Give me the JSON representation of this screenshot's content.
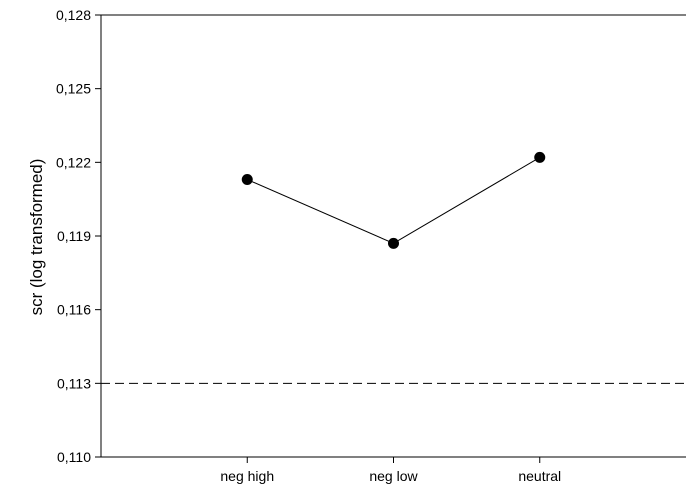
{
  "chart_data": {
    "type": "line",
    "title": "",
    "xlabel": "",
    "ylabel": "scr (log transformed)",
    "categories": [
      "neg high",
      "neg low",
      "neutral"
    ],
    "series": [
      {
        "values": [
          0.1213,
          0.1187,
          0.1222
        ]
      }
    ],
    "ylim": [
      0.11,
      0.128
    ],
    "yticks": [
      0.11,
      0.113,
      0.116,
      0.119,
      0.122,
      0.125,
      0.128
    ],
    "ytick_labels": [
      "0,110",
      "0,113",
      "0,116",
      "0,119",
      "0,122",
      "0,125",
      "0,128"
    ],
    "reference_line": {
      "y": 0.113,
      "style": "dashed"
    },
    "grid": false,
    "legend": "none",
    "colors": {
      "line": "#000000",
      "marker": "#000000",
      "axis": "#000000"
    }
  }
}
